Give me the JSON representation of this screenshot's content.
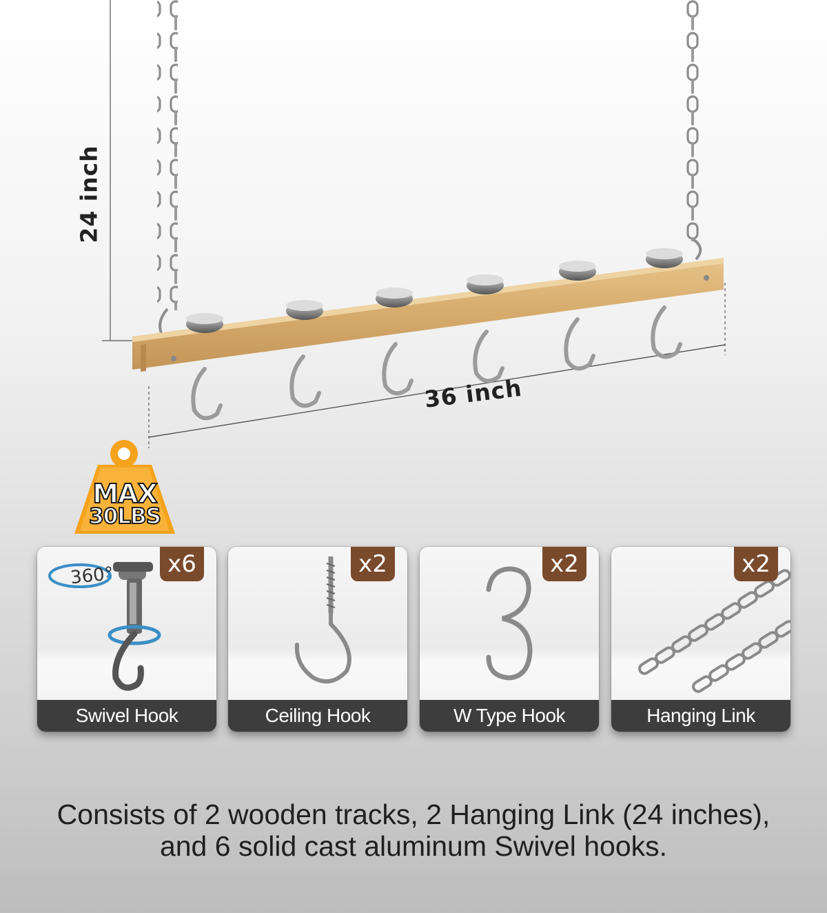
{
  "dimensions": {
    "height_label": "24 inch",
    "length_label": "36 inch"
  },
  "badge": {
    "line1": "MAX",
    "line2": "30LBS"
  },
  "components": [
    {
      "label": "Swivel Hook",
      "quantity": "x6",
      "rotation": "360°"
    },
    {
      "label": "Ceiling Hook",
      "quantity": "x2"
    },
    {
      "label": "W Type Hook",
      "quantity": "x2"
    },
    {
      "label": "Hanging Link",
      "quantity": "x2"
    }
  ],
  "caption": {
    "line1": "Consists of 2 wooden tracks, 2 Hanging Link (24 inches),",
    "line2": "and 6 solid cast aluminum Swivel hooks."
  },
  "colors": {
    "wood": "#d8b27a",
    "badge_orange": "#f5a21c",
    "quantity_brown": "#7a4a2c",
    "label_bar": "#3d3d3d"
  }
}
